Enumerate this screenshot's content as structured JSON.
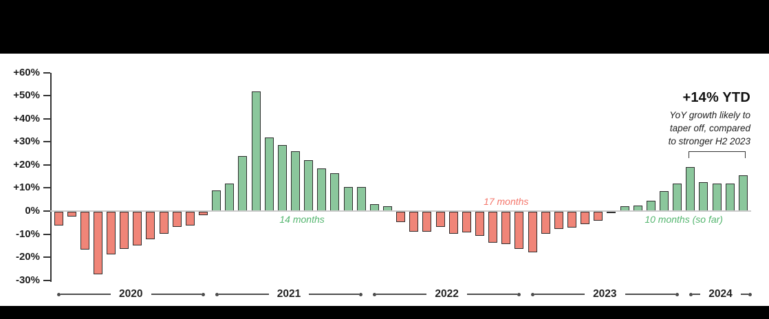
{
  "header": {
    "ytd_headline": "+14% YTD",
    "ytd_note_lines": [
      "YoY growth likely to",
      "taper off, compared",
      "to stronger H2 2023"
    ]
  },
  "chart_data": {
    "type": "bar",
    "title": "",
    "xlabel": "",
    "ylabel": "",
    "unit": "% YoY growth by month",
    "ylim": [
      -30,
      60
    ],
    "grid": false,
    "ytick_labels": [
      "+60%",
      "+50%",
      "+40%",
      "+30%",
      "+20%",
      "+10%",
      "0%",
      "-10%",
      "-20%",
      "-30%"
    ],
    "ytick_values": [
      60,
      50,
      40,
      30,
      20,
      10,
      0,
      -10,
      -20,
      -30
    ],
    "years": [
      {
        "label": "2020",
        "values": [
          -6,
          -2,
          -16.5,
          -27,
          -18.5,
          -16,
          -14.5,
          -12,
          -9.5,
          -6.5,
          -6,
          -1.5
        ]
      },
      {
        "label": "2021",
        "values": [
          9,
          12,
          24,
          52,
          32,
          28.5,
          26,
          22,
          18.5,
          16.5,
          10.5,
          10.5
        ]
      },
      {
        "label": "2022",
        "values": [
          3,
          2,
          -4.5,
          -8.5,
          -8.5,
          -6.5,
          -9.5,
          -9,
          -10.5,
          -13.5,
          -14,
          -16
        ]
      },
      {
        "label": "2023",
        "values": [
          -17.5,
          -9.5,
          -7.5,
          -7,
          -5.5,
          -4,
          -0.5,
          2,
          2.5,
          4.5,
          8.5,
          12
        ]
      },
      {
        "label": "2024",
        "values": [
          19,
          12.5,
          12,
          12,
          15.5
        ]
      }
    ],
    "streak_annotations": [
      {
        "label": "14 months",
        "sentiment": "positive",
        "position": "below"
      },
      {
        "label": "17 months",
        "sentiment": "negative",
        "position": "above"
      },
      {
        "label": "10 months (so far)",
        "sentiment": "positive",
        "position": "below"
      }
    ],
    "legend": "none"
  },
  "colors": {
    "positive_bar": "#8bc79c",
    "negative_bar": "#f08578",
    "bar_outline": "#2d2d2d",
    "positive_text": "#53b56e",
    "negative_text": "#f4756a",
    "axis": "#333333",
    "baseline": "#cbcbcb",
    "year_axis": "#4c4c4c",
    "band": "#000000"
  }
}
